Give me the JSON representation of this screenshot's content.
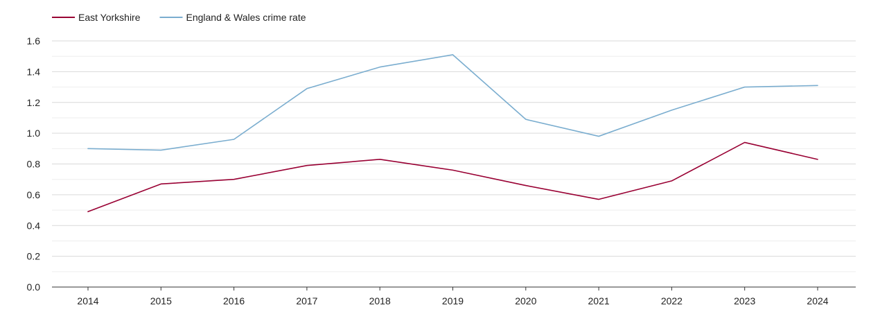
{
  "chart_data": {
    "type": "line",
    "title": "",
    "xlabel": "",
    "ylabel": "",
    "x": [
      2014,
      2015,
      2016,
      2017,
      2018,
      2019,
      2020,
      2021,
      2022,
      2023,
      2024
    ],
    "x_tick_labels": [
      "2014",
      "2015",
      "2016",
      "2017",
      "2018",
      "2019",
      "2020",
      "2021",
      "2022",
      "2023",
      "2024"
    ],
    "y_ticks": [
      0.0,
      0.2,
      0.4,
      0.6,
      0.8,
      1.0,
      1.2,
      1.4,
      1.6
    ],
    "y_tick_labels": [
      "0.0",
      "0.2",
      "0.4",
      "0.6",
      "0.8",
      "1.0",
      "1.2",
      "1.4",
      "1.6"
    ],
    "ylim": [
      0,
      1.6
    ],
    "grid": true,
    "minor_grid": true,
    "legend_position": "top-left",
    "series": [
      {
        "name": "East Yorkshire",
        "color": "#990033",
        "values": [
          0.49,
          0.67,
          0.7,
          0.79,
          0.83,
          0.76,
          0.66,
          0.57,
          0.69,
          0.94,
          0.83
        ]
      },
      {
        "name": "England & Wales crime rate",
        "color": "#7aadcf",
        "values": [
          0.9,
          0.89,
          0.96,
          1.29,
          1.43,
          1.51,
          1.09,
          0.98,
          1.15,
          1.3,
          1.31
        ]
      }
    ]
  }
}
